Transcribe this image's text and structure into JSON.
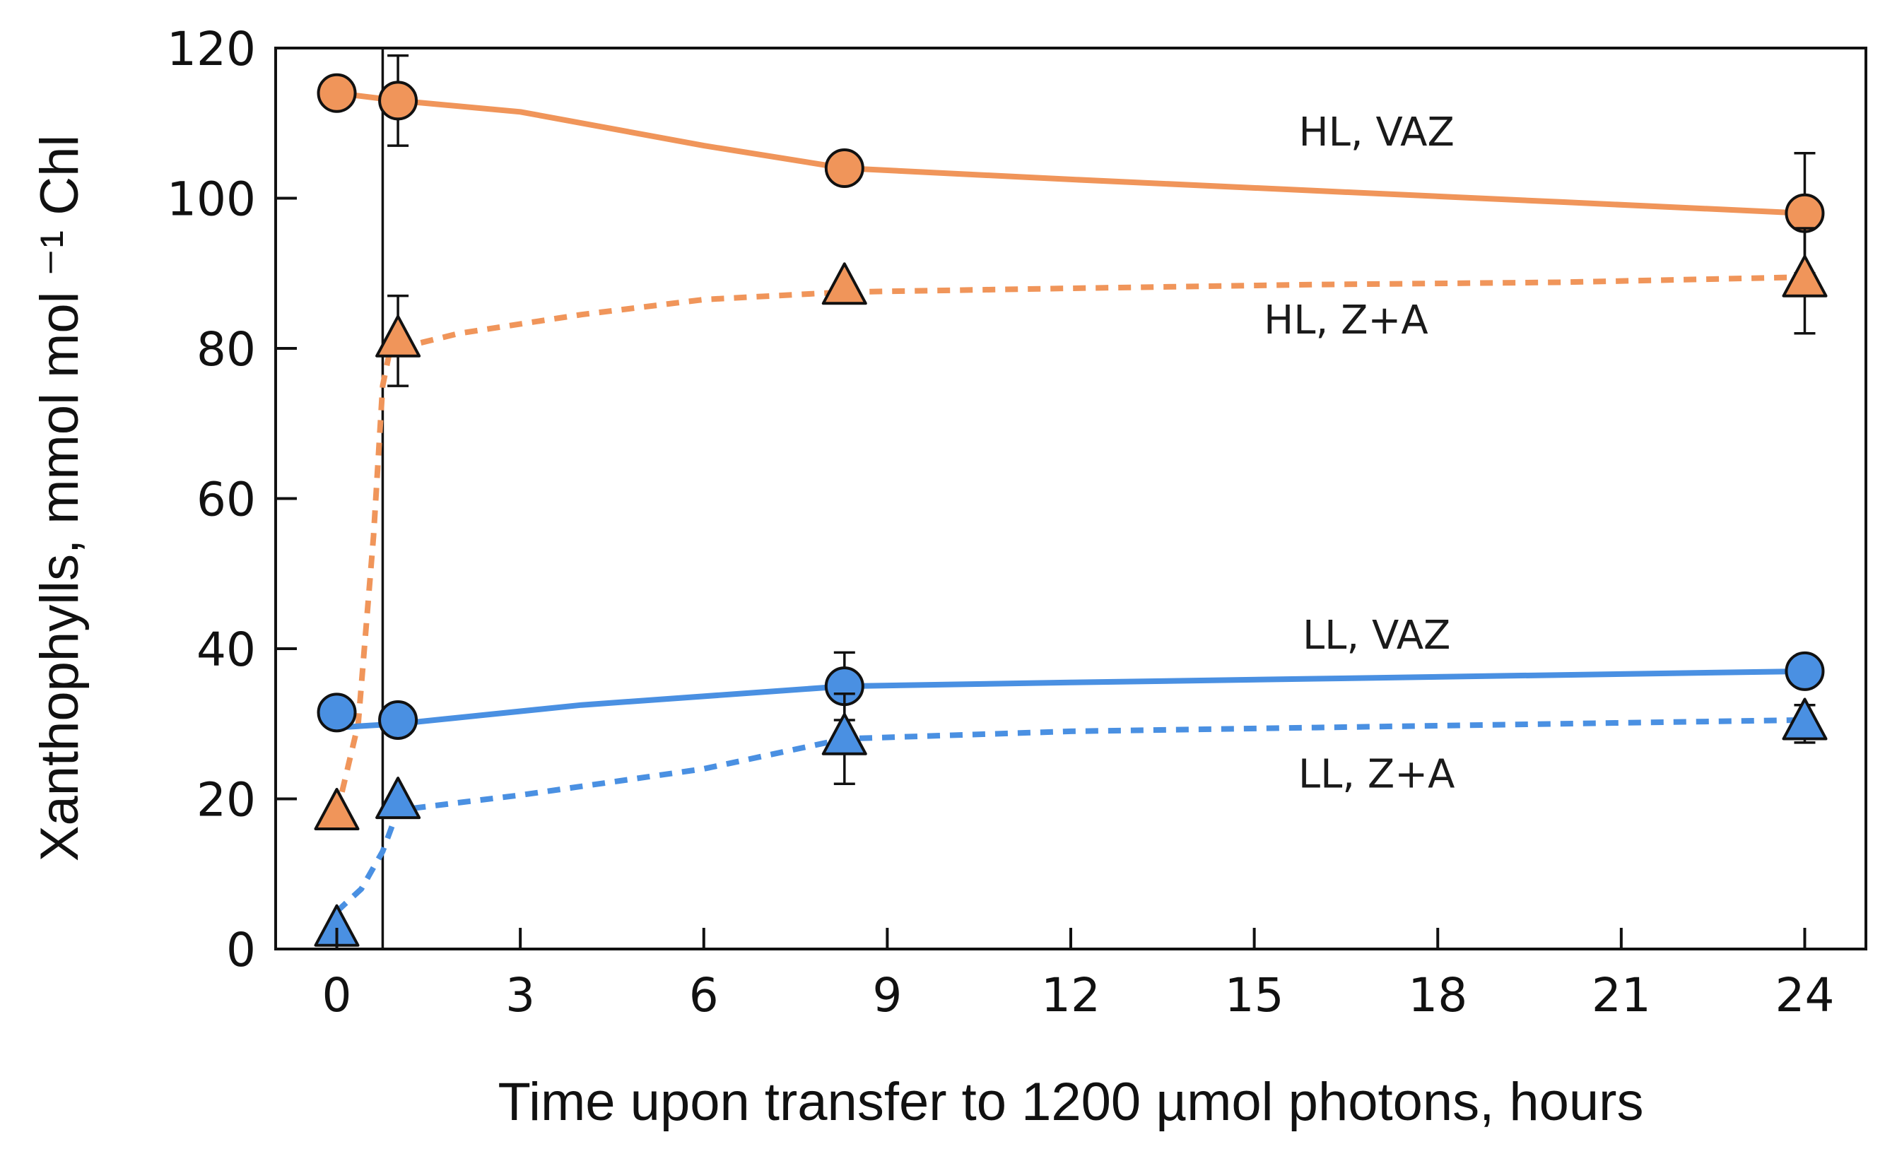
{
  "chart_data": {
    "type": "line",
    "title": "",
    "xlabel": "Time upon transfer to 1200 µmol photons, hours",
    "ylabel": "Xanthophylls, mmol mol ⁻¹ Chl",
    "xlim": [
      -1,
      25
    ],
    "ylim": [
      0,
      120
    ],
    "xticks": [
      0,
      3,
      6,
      9,
      12,
      15,
      18,
      21,
      24
    ],
    "yticks": [
      0,
      20,
      40,
      60,
      80,
      100,
      120
    ],
    "xtick_labels": [
      "0",
      "3",
      "6",
      "9",
      "12",
      "15",
      "18",
      "21",
      "24"
    ],
    "ytick_labels": [
      "0",
      "20",
      "40",
      "60",
      "80",
      "100",
      "120"
    ],
    "vline_x": 0.75,
    "series": [
      {
        "name": "HL, VAZ",
        "color": "#f0955a",
        "line_style": "solid",
        "marker": "circle",
        "x": [
          0,
          1,
          8.3,
          24
        ],
        "values": [
          114,
          113,
          104,
          98
        ],
        "errors": [
          0,
          6,
          0,
          8
        ],
        "curve_x": [
          0,
          1,
          3,
          6,
          8.3,
          12,
          16,
          20,
          24
        ],
        "curve_y": [
          114,
          113,
          111.5,
          107,
          104,
          102.5,
          101,
          99.5,
          98
        ],
        "label_xy": [
          17,
          107
        ]
      },
      {
        "name": "HL, Z+A",
        "color": "#f0955a",
        "line_style": "dashed",
        "marker": "triangle",
        "x": [
          0,
          1,
          8.3,
          24
        ],
        "values": [
          18,
          81,
          88,
          89
        ],
        "errors": [
          0,
          6,
          0,
          7
        ],
        "curve_x": [
          0,
          0.35,
          0.6,
          0.75,
          0.85,
          1,
          2,
          4,
          6,
          8.3,
          12,
          16,
          20,
          24
        ],
        "curve_y": [
          18,
          30,
          55,
          75,
          79,
          80,
          82,
          84.5,
          86.5,
          87.5,
          88,
          88.5,
          88.8,
          89.5
        ],
        "label_xy": [
          16.5,
          82
        ]
      },
      {
        "name": "LL, VAZ",
        "color": "#4a90e2",
        "line_style": "solid",
        "marker": "circle",
        "x": [
          0,
          1,
          8.3,
          24
        ],
        "values": [
          31.5,
          30.5,
          35,
          37
        ],
        "errors": [
          0,
          0,
          4.5,
          0
        ],
        "curve_x": [
          0,
          1,
          4,
          8.3,
          12,
          16,
          20,
          24
        ],
        "curve_y": [
          29.5,
          30,
          32.5,
          35,
          35.5,
          36,
          36.5,
          37
        ],
        "label_xy": [
          17,
          40
        ]
      },
      {
        "name": "LL, Z+A",
        "color": "#4a90e2",
        "line_style": "dashed",
        "marker": "triangle",
        "x": [
          0,
          1,
          8.3,
          24
        ],
        "values": [
          2.5,
          19.5,
          28,
          30
        ],
        "errors": [
          0,
          0,
          6,
          2.5
        ],
        "curve_x": [
          0,
          0.4,
          0.75,
          1,
          3,
          6,
          8.3,
          12,
          16,
          20,
          24
        ],
        "curve_y": [
          5,
          8,
          13,
          18.5,
          20.5,
          24,
          28,
          29,
          29.5,
          30,
          30.5
        ],
        "label_xy": [
          17,
          21.5
        ]
      }
    ]
  }
}
